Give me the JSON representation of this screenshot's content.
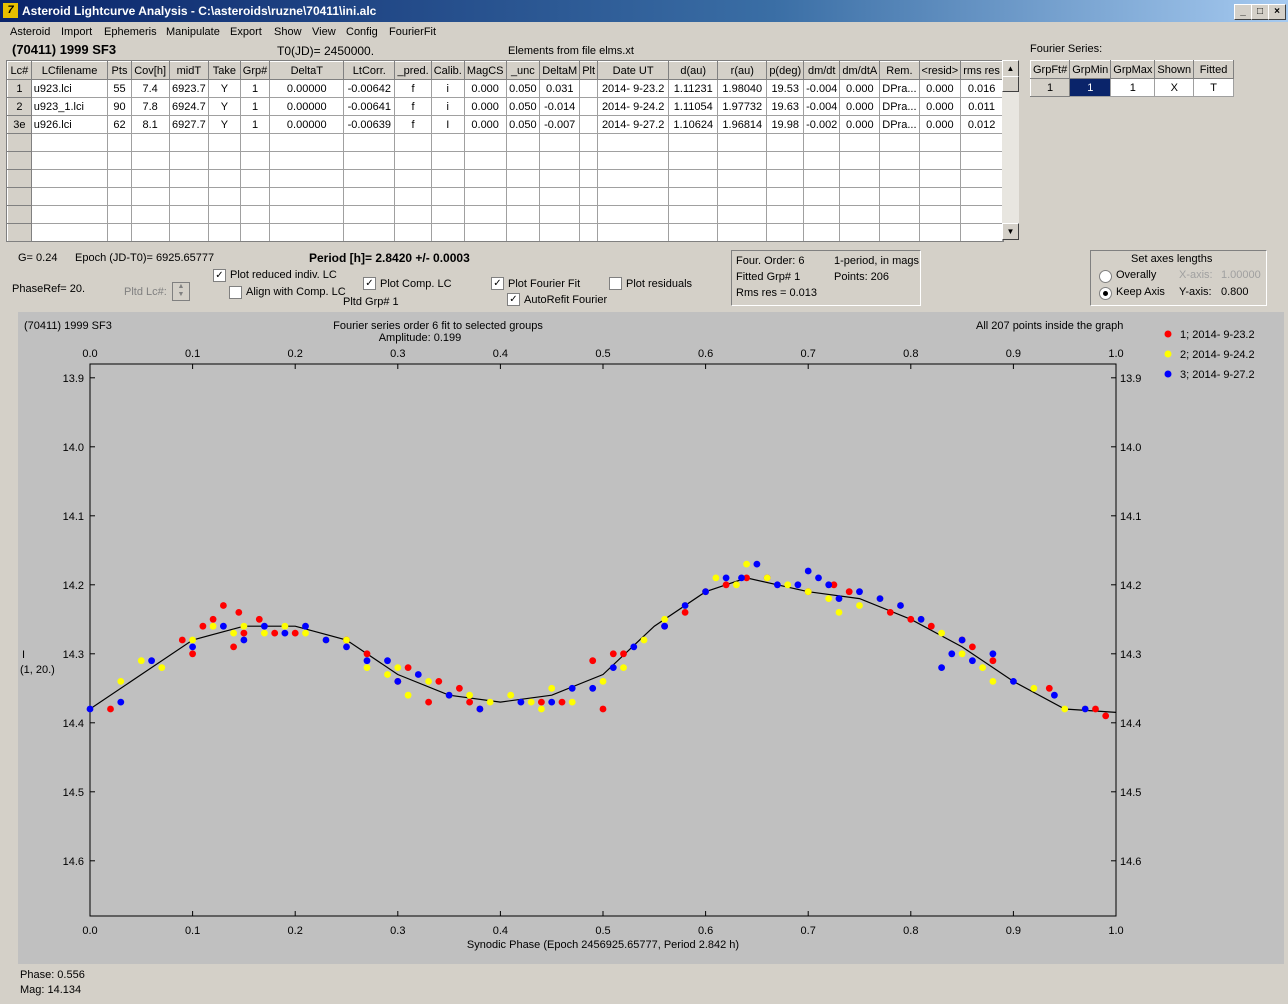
{
  "window": {
    "title": "Asteroid Lightcurve Analysis - C:\\asteroids\\ruzne\\70411\\ini.alc",
    "icon_text": "7",
    "controls": [
      "_",
      "□",
      "×"
    ]
  },
  "menu": [
    "Asteroid",
    "Import",
    "Ephemeris",
    "Manipulate",
    "Export",
    "Show",
    "View",
    "Config",
    "FourierFit"
  ],
  "header": {
    "object": "(70411) 1999 SF3",
    "t0": "T0(JD)= 2450000.",
    "elements": "Elements from file elms.xt"
  },
  "lc_table": {
    "columns": [
      "Lc#",
      "LCfilename",
      "Pts",
      "Cov[h]",
      "midT",
      "Take",
      "Grp#",
      "DeltaT",
      "LtCorr.",
      "_pred.",
      "Calib.",
      "MagCS",
      "_unc",
      "DeltaM",
      "Plt",
      "Date UT",
      "d(au)",
      "r(au)",
      "p(deg)",
      "dm/dt",
      "dm/dtA",
      "Rem.",
      "<resid>",
      "rms res"
    ],
    "rows": [
      [
        "1",
        "u923.lci",
        "55",
        "7.4",
        "6923.7",
        "Y",
        "1",
        "0.00000",
        "-0.00642",
        "f",
        "i",
        "0.000",
        "0.050",
        "0.031",
        "",
        "2014- 9-23.2",
        "1.11231",
        "1.98040",
        "19.53",
        "-0.004",
        "0.000",
        "DPra...",
        "0.000",
        "0.016"
      ],
      [
        "2",
        "u923_1.lci",
        "90",
        "7.8",
        "6924.7",
        "Y",
        "1",
        "0.00000",
        "-0.00641",
        "f",
        "i",
        "0.000",
        "0.050",
        "-0.014",
        "",
        "2014- 9-24.2",
        "1.11054",
        "1.97732",
        "19.63",
        "-0.004",
        "0.000",
        "DPra...",
        "0.000",
        "0.011"
      ],
      [
        "3e",
        "u926.lci",
        "62",
        "8.1",
        "6927.7",
        "Y",
        "1",
        "0.00000",
        "-0.00639",
        "f",
        "I",
        "0.000",
        "0.050",
        "-0.007",
        "",
        "2014- 9-27.2",
        "1.10624",
        "1.96814",
        "19.98",
        "-0.002",
        "0.000",
        "DPra...",
        "0.000",
        "0.012"
      ]
    ]
  },
  "fourier_table": {
    "title": "Fourier Series:",
    "columns": [
      "GrpFt#",
      "GrpMin",
      "GrpMax",
      "Shown",
      "Fitted"
    ],
    "row": [
      "1",
      "1",
      "1",
      "X",
      "T"
    ]
  },
  "controls": {
    "g": "G= 0.24",
    "epoch": "Epoch (JD-T0)= 6925.65777",
    "period": "Period [h]= 2.8420 +/- 0.0003",
    "phaseref": "PhaseRef= 20.",
    "pltd_lc": "Pltd Lc#:",
    "pltd_grp": "Pltd Grp#  1",
    "cb_reduced": "Plot reduced indiv. LC",
    "cb_align": "Align with Comp. LC",
    "cb_comp": "Plot Comp. LC",
    "cb_fourier": "Plot Fourier Fit",
    "cb_autorefit": "AutoRefit Fourier",
    "cb_residuals": "Plot residuals",
    "info_order": "Four. Order:  6",
    "info_period": "1-period, in mags",
    "info_grp": "Fitted Grp# 1",
    "info_points": "Points: 206",
    "info_rms": "Rms res     = 0.013",
    "axes_title": "Set axes lengths",
    "radio_overall": "Overally",
    "radio_keep": "Keep Axis",
    "xaxis_label": "X-axis:",
    "xaxis_value": "1.00000",
    "yaxis_label": "Y-axis:",
    "yaxis_value": "0.800"
  },
  "plot_text": {
    "object": "(70411) 1999 SF3",
    "fit_title": "Fourier series order 6 fit to selected groups",
    "amplitude": "Amplitude: 0.199",
    "points_info": "All 207 points inside the graph",
    "ylabel": "I",
    "ylabel2": "(1, 20.)",
    "xlabel": "Synodic Phase (Epoch 2456925.65777, Period 2.842 h)"
  },
  "status": {
    "phase": "Phase:  0.556",
    "mag": "Mag:   14.134"
  },
  "chart_data": {
    "type": "scatter",
    "xlim": [
      0,
      1
    ],
    "ylim": [
      14.68,
      13.88
    ],
    "x_ticks": [
      "0.0",
      "0.1",
      "0.2",
      "0.3",
      "0.4",
      "0.5",
      "0.6",
      "0.7",
      "0.8",
      "0.9",
      "1.0"
    ],
    "y_ticks": [
      "13.9",
      "14.0",
      "14.1",
      "14.2",
      "14.3",
      "14.4",
      "14.5",
      "14.6"
    ],
    "series": [
      {
        "name": "1; 2014- 9-23.2",
        "color": "#ff0000",
        "points": [
          [
            0.02,
            14.38
          ],
          [
            0.09,
            14.28
          ],
          [
            0.1,
            14.3
          ],
          [
            0.11,
            14.26
          ],
          [
            0.12,
            14.25
          ],
          [
            0.13,
            14.23
          ],
          [
            0.14,
            14.29
          ],
          [
            0.145,
            14.24
          ],
          [
            0.15,
            14.27
          ],
          [
            0.165,
            14.25
          ],
          [
            0.18,
            14.27
          ],
          [
            0.2,
            14.27
          ],
          [
            0.25,
            14.28
          ],
          [
            0.27,
            14.3
          ],
          [
            0.3,
            14.34
          ],
          [
            0.31,
            14.32
          ],
          [
            0.33,
            14.37
          ],
          [
            0.34,
            14.34
          ],
          [
            0.36,
            14.35
          ],
          [
            0.37,
            14.37
          ],
          [
            0.38,
            14.38
          ],
          [
            0.44,
            14.37
          ],
          [
            0.46,
            14.37
          ],
          [
            0.49,
            14.31
          ],
          [
            0.5,
            14.38
          ],
          [
            0.51,
            14.3
          ],
          [
            0.52,
            14.3
          ],
          [
            0.56,
            14.26
          ],
          [
            0.58,
            14.24
          ],
          [
            0.6,
            14.21
          ],
          [
            0.62,
            14.2
          ],
          [
            0.64,
            14.19
          ],
          [
            0.66,
            14.19
          ],
          [
            0.7,
            14.21
          ],
          [
            0.725,
            14.2
          ],
          [
            0.74,
            14.21
          ],
          [
            0.78,
            14.24
          ],
          [
            0.8,
            14.25
          ],
          [
            0.82,
            14.26
          ],
          [
            0.85,
            14.28
          ],
          [
            0.86,
            14.29
          ],
          [
            0.88,
            14.31
          ],
          [
            0.935,
            14.35
          ],
          [
            0.98,
            14.38
          ],
          [
            0.99,
            14.39
          ]
        ]
      },
      {
        "name": "2; 2014- 9-24.2",
        "color": "#ffff00",
        "points": [
          [
            0.03,
            14.34
          ],
          [
            0.05,
            14.31
          ],
          [
            0.07,
            14.32
          ],
          [
            0.1,
            14.28
          ],
          [
            0.12,
            14.26
          ],
          [
            0.14,
            14.27
          ],
          [
            0.15,
            14.26
          ],
          [
            0.17,
            14.27
          ],
          [
            0.19,
            14.26
          ],
          [
            0.21,
            14.27
          ],
          [
            0.23,
            14.28
          ],
          [
            0.25,
            14.28
          ],
          [
            0.27,
            14.32
          ],
          [
            0.29,
            14.33
          ],
          [
            0.3,
            14.32
          ],
          [
            0.31,
            14.36
          ],
          [
            0.33,
            14.34
          ],
          [
            0.35,
            14.36
          ],
          [
            0.37,
            14.36
          ],
          [
            0.39,
            14.37
          ],
          [
            0.41,
            14.36
          ],
          [
            0.43,
            14.37
          ],
          [
            0.44,
            14.38
          ],
          [
            0.45,
            14.35
          ],
          [
            0.47,
            14.37
          ],
          [
            0.5,
            14.34
          ],
          [
            0.52,
            14.32
          ],
          [
            0.54,
            14.28
          ],
          [
            0.56,
            14.25
          ],
          [
            0.58,
            14.23
          ],
          [
            0.6,
            14.21
          ],
          [
            0.61,
            14.19
          ],
          [
            0.63,
            14.2
          ],
          [
            0.64,
            14.17
          ],
          [
            0.66,
            14.19
          ],
          [
            0.68,
            14.2
          ],
          [
            0.7,
            14.21
          ],
          [
            0.72,
            14.22
          ],
          [
            0.73,
            14.24
          ],
          [
            0.75,
            14.23
          ],
          [
            0.77,
            14.22
          ],
          [
            0.79,
            14.23
          ],
          [
            0.81,
            14.25
          ],
          [
            0.83,
            14.27
          ],
          [
            0.85,
            14.3
          ],
          [
            0.87,
            14.32
          ],
          [
            0.88,
            14.34
          ],
          [
            0.92,
            14.35
          ],
          [
            0.95,
            14.38
          ],
          [
            0.97,
            14.38
          ]
        ]
      },
      {
        "name": "3; 2014- 9-27.2",
        "color": "#0000ff",
        "points": [
          [
            0.0,
            14.38
          ],
          [
            0.03,
            14.37
          ],
          [
            0.06,
            14.31
          ],
          [
            0.1,
            14.29
          ],
          [
            0.13,
            14.26
          ],
          [
            0.15,
            14.28
          ],
          [
            0.17,
            14.26
          ],
          [
            0.19,
            14.27
          ],
          [
            0.21,
            14.26
          ],
          [
            0.23,
            14.28
          ],
          [
            0.25,
            14.29
          ],
          [
            0.27,
            14.31
          ],
          [
            0.29,
            14.31
          ],
          [
            0.3,
            14.34
          ],
          [
            0.32,
            14.33
          ],
          [
            0.35,
            14.36
          ],
          [
            0.38,
            14.38
          ],
          [
            0.42,
            14.37
          ],
          [
            0.45,
            14.37
          ],
          [
            0.47,
            14.35
          ],
          [
            0.49,
            14.35
          ],
          [
            0.51,
            14.32
          ],
          [
            0.53,
            14.29
          ],
          [
            0.56,
            14.26
          ],
          [
            0.58,
            14.23
          ],
          [
            0.6,
            14.21
          ],
          [
            0.62,
            14.19
          ],
          [
            0.635,
            14.19
          ],
          [
            0.65,
            14.17
          ],
          [
            0.67,
            14.2
          ],
          [
            0.69,
            14.2
          ],
          [
            0.7,
            14.18
          ],
          [
            0.71,
            14.19
          ],
          [
            0.72,
            14.2
          ],
          [
            0.73,
            14.22
          ],
          [
            0.75,
            14.21
          ],
          [
            0.77,
            14.22
          ],
          [
            0.79,
            14.23
          ],
          [
            0.81,
            14.25
          ],
          [
            0.83,
            14.32
          ],
          [
            0.84,
            14.3
          ],
          [
            0.85,
            14.28
          ],
          [
            0.86,
            14.31
          ],
          [
            0.88,
            14.3
          ],
          [
            0.9,
            14.34
          ],
          [
            0.94,
            14.36
          ],
          [
            0.97,
            14.38
          ]
        ]
      }
    ],
    "fit_curve": [
      [
        0,
        14.38
      ],
      [
        0.05,
        14.33
      ],
      [
        0.1,
        14.28
      ],
      [
        0.15,
        14.26
      ],
      [
        0.2,
        14.26
      ],
      [
        0.25,
        14.28
      ],
      [
        0.3,
        14.33
      ],
      [
        0.35,
        14.36
      ],
      [
        0.4,
        14.37
      ],
      [
        0.45,
        14.36
      ],
      [
        0.5,
        14.33
      ],
      [
        0.55,
        14.26
      ],
      [
        0.6,
        14.21
      ],
      [
        0.64,
        14.19
      ],
      [
        0.7,
        14.21
      ],
      [
        0.75,
        14.22
      ],
      [
        0.8,
        14.25
      ],
      [
        0.85,
        14.29
      ],
      [
        0.9,
        14.34
      ],
      [
        0.95,
        14.38
      ],
      [
        1.0,
        14.385
      ]
    ]
  }
}
